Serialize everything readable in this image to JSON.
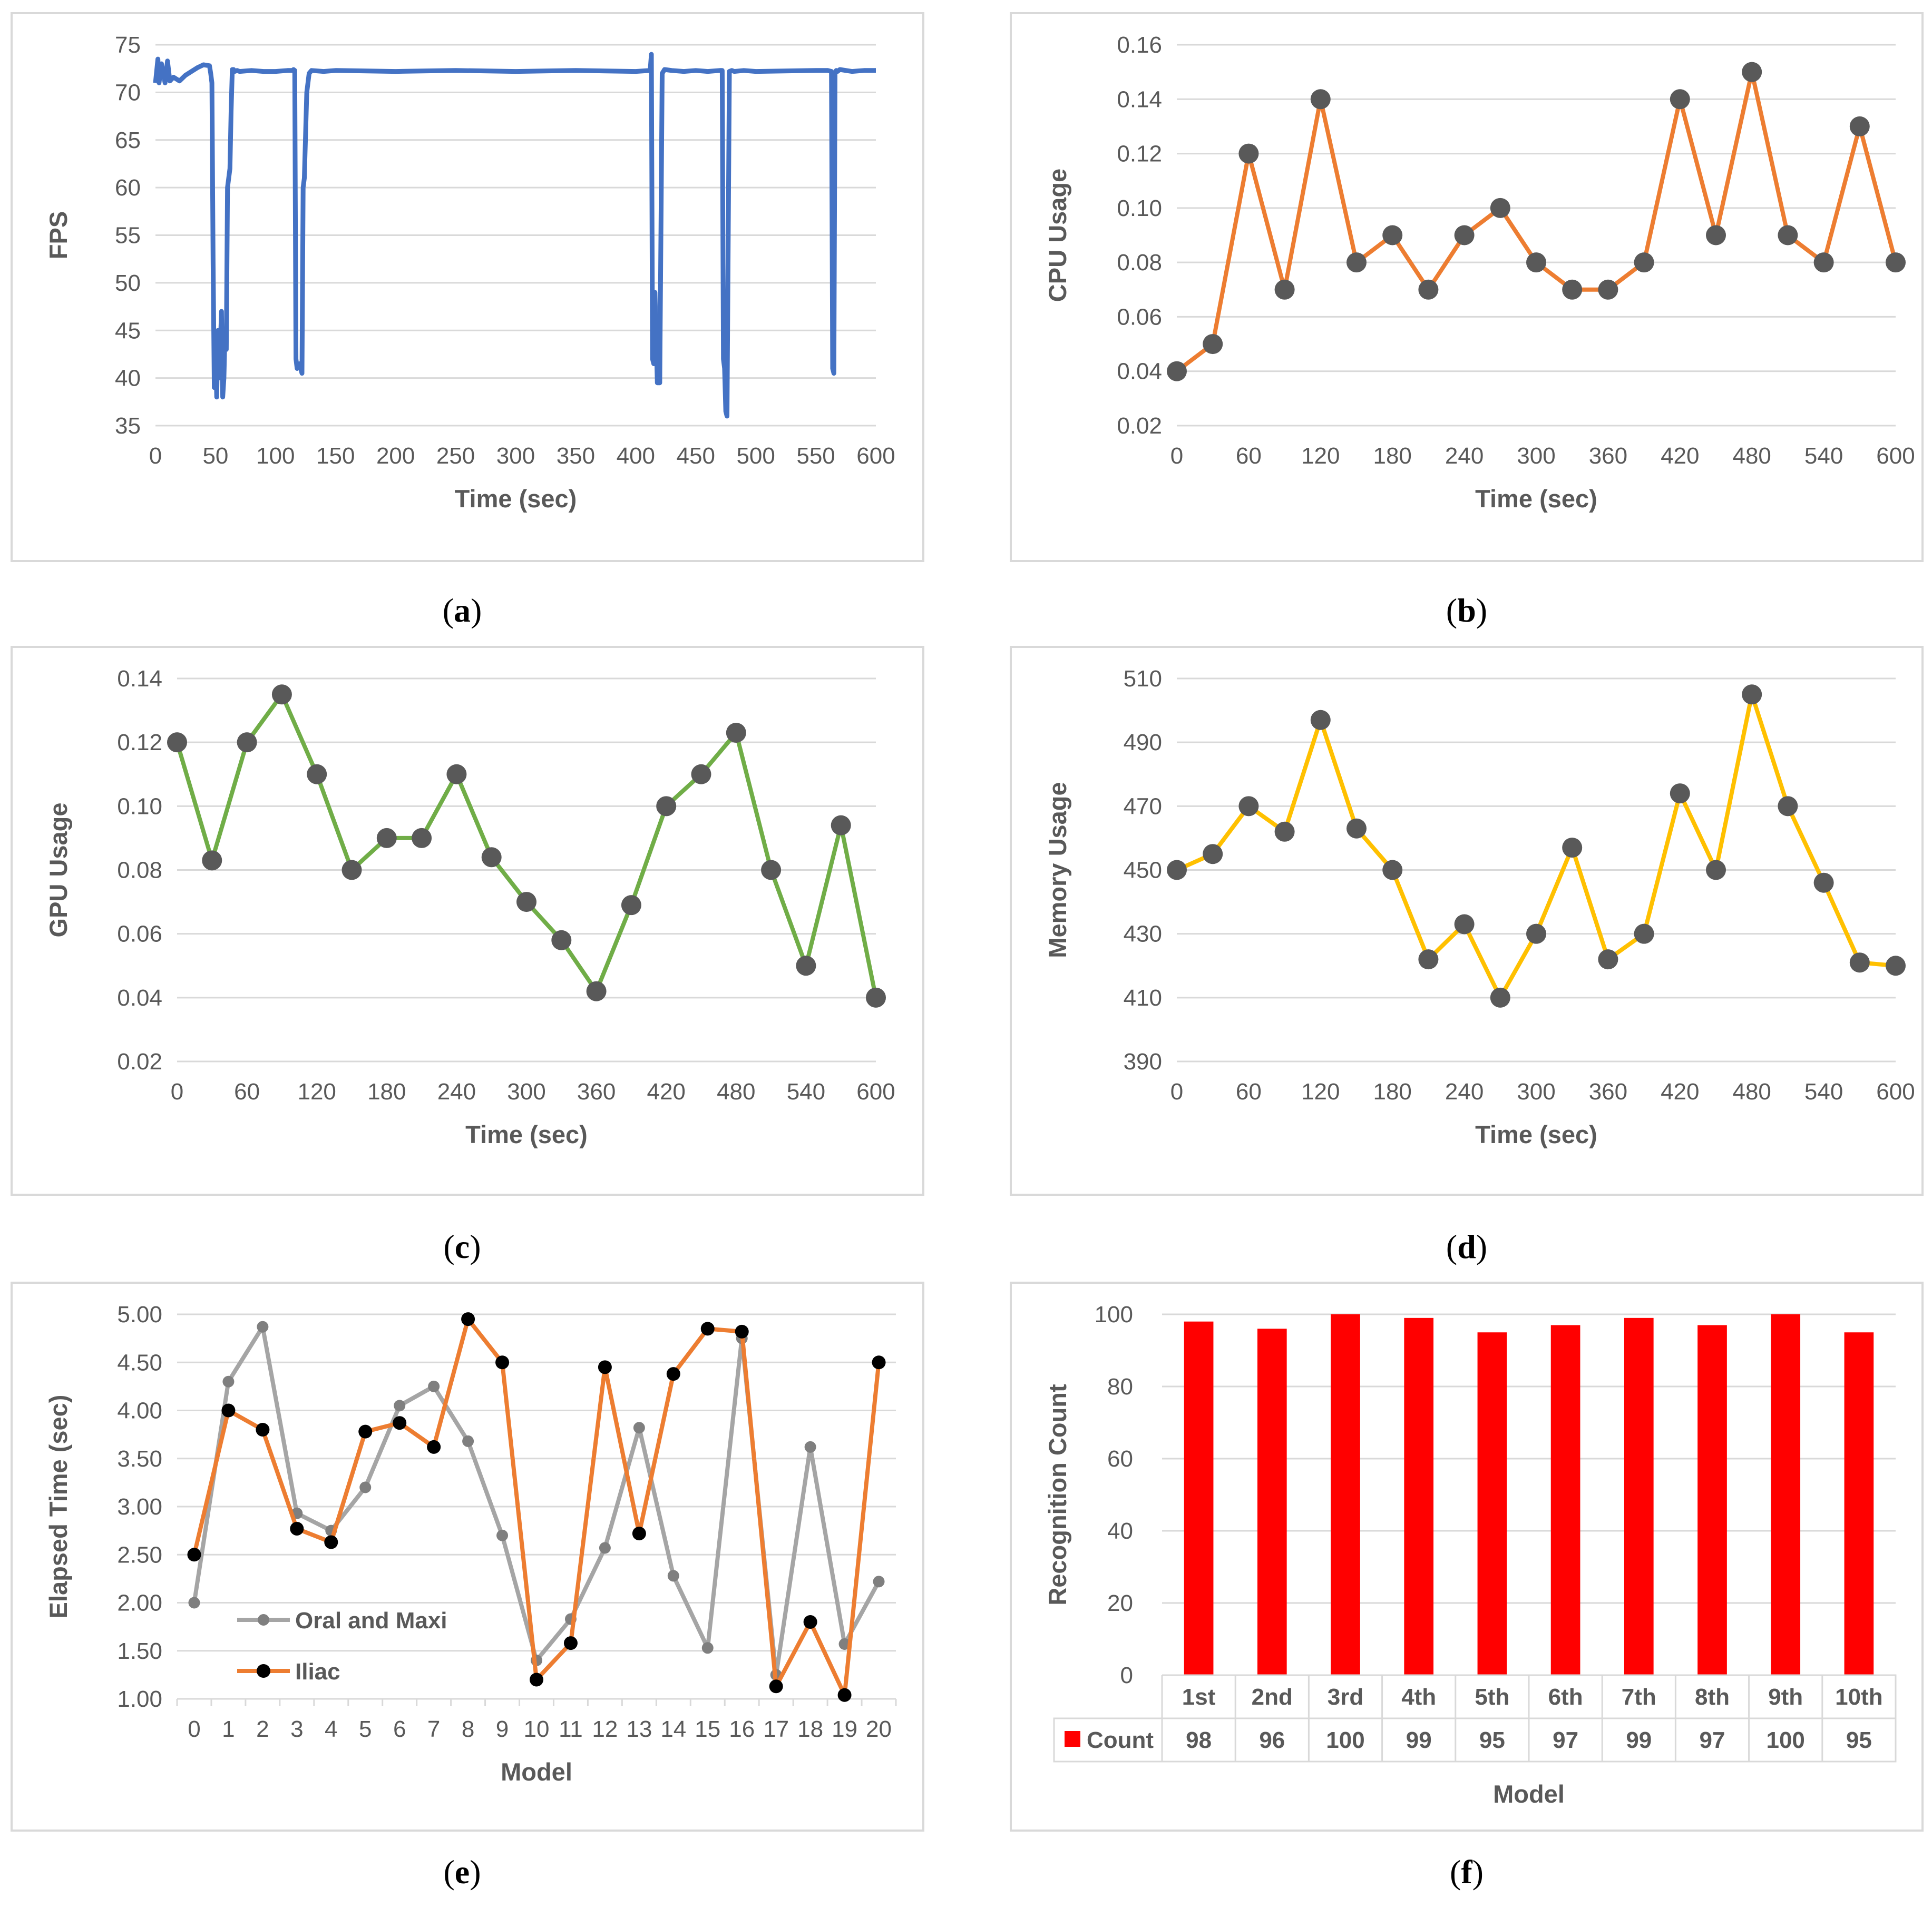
{
  "chart_data": [
    {
      "id": "a",
      "type": "line",
      "caption": "a",
      "xlabel": "Time (sec)",
      "ylabel": "FPS",
      "xlim": [
        0,
        600
      ],
      "ylim": [
        35,
        75
      ],
      "xticks": [
        0,
        50,
        100,
        150,
        200,
        250,
        300,
        350,
        400,
        450,
        500,
        550,
        600
      ],
      "yticks": [
        35,
        40,
        45,
        50,
        55,
        60,
        65,
        70,
        75
      ],
      "color": "#4472c4",
      "markers": false,
      "x": [
        0,
        2,
        3,
        5,
        8,
        10,
        12,
        15,
        20,
        25,
        30,
        35,
        40,
        45,
        46,
        47,
        48,
        49,
        50,
        51,
        52,
        53,
        55,
        56,
        57,
        58,
        59,
        60,
        61,
        62,
        63,
        64,
        65,
        66,
        68,
        70,
        80,
        90,
        100,
        110,
        114,
        115,
        116,
        117,
        118,
        120,
        122,
        123,
        124,
        126,
        128,
        130,
        140,
        150,
        200,
        250,
        300,
        350,
        400,
        412,
        413,
        414,
        415,
        416,
        418,
        420,
        422,
        424,
        430,
        440,
        450,
        460,
        470,
        472,
        473,
        474,
        475,
        476,
        478,
        480,
        482,
        490,
        500,
        550,
        560,
        563,
        564,
        565,
        566,
        567,
        568,
        570,
        580,
        590,
        600
      ],
      "y": [
        71,
        73.5,
        71,
        73,
        71,
        73.3,
        71.2,
        71.6,
        71.2,
        71.8,
        72.2,
        72.6,
        72.9,
        72.8,
        72,
        71,
        52,
        39,
        44,
        38,
        45,
        40,
        47,
        38,
        40,
        45,
        43,
        60,
        61,
        62,
        68,
        72.4,
        72.4,
        72.2,
        72.3,
        72.2,
        72.3,
        72.2,
        72.2,
        72.3,
        72.3,
        72.4,
        72.3,
        42,
        41,
        41.5,
        40.5,
        60,
        61,
        70,
        72,
        72.3,
        72.2,
        72.3,
        72.2,
        72.3,
        72.2,
        72.3,
        72.2,
        72.3,
        74,
        42,
        41.5,
        49,
        39.5,
        39.5,
        72,
        72.4,
        72.3,
        72.2,
        72.3,
        72.2,
        72.3,
        72.3,
        42,
        41,
        36.5,
        36,
        72.2,
        72.3,
        72.2,
        72.3,
        72.2,
        72.3,
        72.3,
        72.2,
        41,
        40.5,
        72,
        72.3,
        72.2,
        72.4,
        72.2,
        72.3,
        72.3
      ]
    },
    {
      "id": "b",
      "type": "line",
      "caption": "b",
      "xlabel": "Time (sec)",
      "ylabel": "CPU Usage",
      "xlim": [
        0,
        600
      ],
      "ylim": [
        0.02,
        0.16
      ],
      "xticks": [
        0,
        60,
        120,
        180,
        240,
        300,
        360,
        420,
        480,
        540,
        600
      ],
      "xtick_labels": [
        "0",
        "60",
        "120",
        "180",
        "240",
        "300",
        "360",
        "420",
        "480",
        "540",
        "600"
      ],
      "yticks": [
        0.02,
        0.04,
        0.06,
        0.08,
        0.1,
        0.12,
        0.14,
        0.16
      ],
      "ytick_labels": [
        "0.02",
        "0.04",
        "0.06",
        "0.08",
        "0.10",
        "0.12",
        "0.14",
        "0.16"
      ],
      "color": "#ed7d31",
      "marker_color": "#595959",
      "markers": true,
      "x": [
        0,
        30,
        60,
        90,
        120,
        150,
        180,
        210,
        240,
        270,
        300,
        330,
        360,
        390,
        420,
        450,
        480,
        510,
        540,
        570,
        600
      ],
      "y": [
        0.04,
        0.05,
        0.12,
        0.07,
        0.14,
        0.08,
        0.09,
        0.07,
        0.09,
        0.1,
        0.08,
        0.07,
        0.07,
        0.08,
        0.14,
        0.09,
        0.15,
        0.09,
        0.08,
        0.13,
        0.08
      ]
    },
    {
      "id": "c",
      "type": "line",
      "caption": "c",
      "xlabel": "Time (sec)",
      "ylabel": "GPU Usage",
      "xlim": [
        0,
        600
      ],
      "ylim": [
        0.02,
        0.14
      ],
      "xticks": [
        0,
        60,
        120,
        180,
        240,
        300,
        360,
        420,
        480,
        540,
        600
      ],
      "xtick_labels": [
        "0",
        "60",
        "120",
        "180",
        "240",
        "300",
        "360",
        "420",
        "480",
        "540",
        "600"
      ],
      "yticks": [
        0.02,
        0.04,
        0.06,
        0.08,
        0.1,
        0.12,
        0.14
      ],
      "ytick_labels": [
        "0.02",
        "0.04",
        "0.06",
        "0.08",
        "0.10",
        "0.12",
        "0.14"
      ],
      "color": "#70ad47",
      "marker_color": "#595959",
      "markers": true,
      "x": [
        0,
        30,
        60,
        90,
        120,
        150,
        180,
        210,
        240,
        270,
        300,
        330,
        360,
        390,
        420,
        450,
        480,
        510,
        540,
        570,
        600
      ],
      "y": [
        0.12,
        0.083,
        0.12,
        0.135,
        0.11,
        0.08,
        0.09,
        0.09,
        0.11,
        0.084,
        0.07,
        0.058,
        0.042,
        0.069,
        0.1,
        0.11,
        0.123,
        0.08,
        0.05,
        0.094,
        0.04
      ]
    },
    {
      "id": "d",
      "type": "line",
      "caption": "d",
      "xlabel": "Time (sec)",
      "ylabel": "Memory Usage",
      "xlim": [
        0,
        600
      ],
      "ylim": [
        390,
        510
      ],
      "xticks": [
        0,
        60,
        120,
        180,
        240,
        300,
        360,
        420,
        480,
        540,
        600
      ],
      "xtick_labels": [
        "0",
        "60",
        "120",
        "180",
        "240",
        "300",
        "360",
        "420",
        "480",
        "540",
        "600"
      ],
      "yticks": [
        390,
        410,
        430,
        450,
        470,
        490,
        510
      ],
      "ytick_labels": [
        "390",
        "410",
        "430",
        "450",
        "470",
        "490",
        "510"
      ],
      "color": "#ffc000",
      "marker_color": "#595959",
      "markers": true,
      "x": [
        0,
        30,
        60,
        90,
        120,
        150,
        180,
        210,
        240,
        270,
        300,
        330,
        360,
        390,
        420,
        450,
        480,
        510,
        540,
        570,
        600
      ],
      "y": [
        450,
        455,
        470,
        462,
        497,
        463,
        450,
        422,
        433,
        410,
        430,
        457,
        422,
        430,
        474,
        450,
        505,
        470,
        446,
        421,
        420
      ]
    },
    {
      "id": "e",
      "type": "line",
      "caption": "e",
      "xlabel": "Model",
      "ylabel": "Elapsed Time (sec)",
      "ylim": [
        1.0,
        5.0
      ],
      "categories": [
        "0",
        "1",
        "2",
        "3",
        "4",
        "5",
        "6",
        "7",
        "8",
        "9",
        "10",
        "11",
        "12",
        "13",
        "14",
        "15",
        "16",
        "17",
        "18",
        "19",
        "20"
      ],
      "yticks": [
        1.0,
        1.5,
        2.0,
        2.5,
        3.0,
        3.5,
        4.0,
        4.5,
        5.0
      ],
      "ytick_labels": [
        "1.00",
        "1.50",
        "2.00",
        "2.50",
        "3.00",
        "3.50",
        "4.00",
        "4.50",
        "5.00"
      ],
      "series": [
        {
          "name": "Oral and Maxi",
          "color": "#a5a5a5",
          "marker_color": "#7f7f7f",
          "values": [
            2.0,
            4.3,
            4.87,
            2.93,
            2.75,
            3.2,
            4.05,
            4.25,
            3.68,
            2.7,
            1.4,
            1.83,
            2.57,
            3.82,
            2.28,
            1.53,
            4.75,
            1.25,
            3.62,
            1.57,
            2.22
          ]
        },
        {
          "name": "Iliac",
          "color": "#ed7d31",
          "marker_color": "#000000",
          "values": [
            2.5,
            4.0,
            3.8,
            2.77,
            2.63,
            3.78,
            3.87,
            3.62,
            4.95,
            4.5,
            1.2,
            1.58,
            4.45,
            2.72,
            4.38,
            4.85,
            4.82,
            1.13,
            1.8,
            1.04,
            4.5
          ]
        }
      ]
    },
    {
      "id": "f",
      "type": "bar",
      "caption": "f",
      "xlabel": "Model",
      "ylabel": "Recognition Count",
      "ylim": [
        0,
        100
      ],
      "yticks": [
        0,
        20,
        40,
        60,
        80,
        100
      ],
      "ytick_labels": [
        "0",
        "20",
        "40",
        "60",
        "80",
        "100"
      ],
      "categories": [
        "1st",
        "2nd",
        "3rd",
        "4th",
        "5th",
        "6th",
        "7th",
        "8th",
        "9th",
        "10th"
      ],
      "series": [
        {
          "name": "Count",
          "color": "#ff0000",
          "values": [
            98,
            96,
            100,
            99,
            95,
            97,
            99,
            97,
            100,
            95
          ],
          "value_labels": [
            "98",
            "96",
            "100",
            "99",
            "95",
            "97",
            "99",
            "97",
            "100",
            "95"
          ]
        }
      ]
    }
  ]
}
